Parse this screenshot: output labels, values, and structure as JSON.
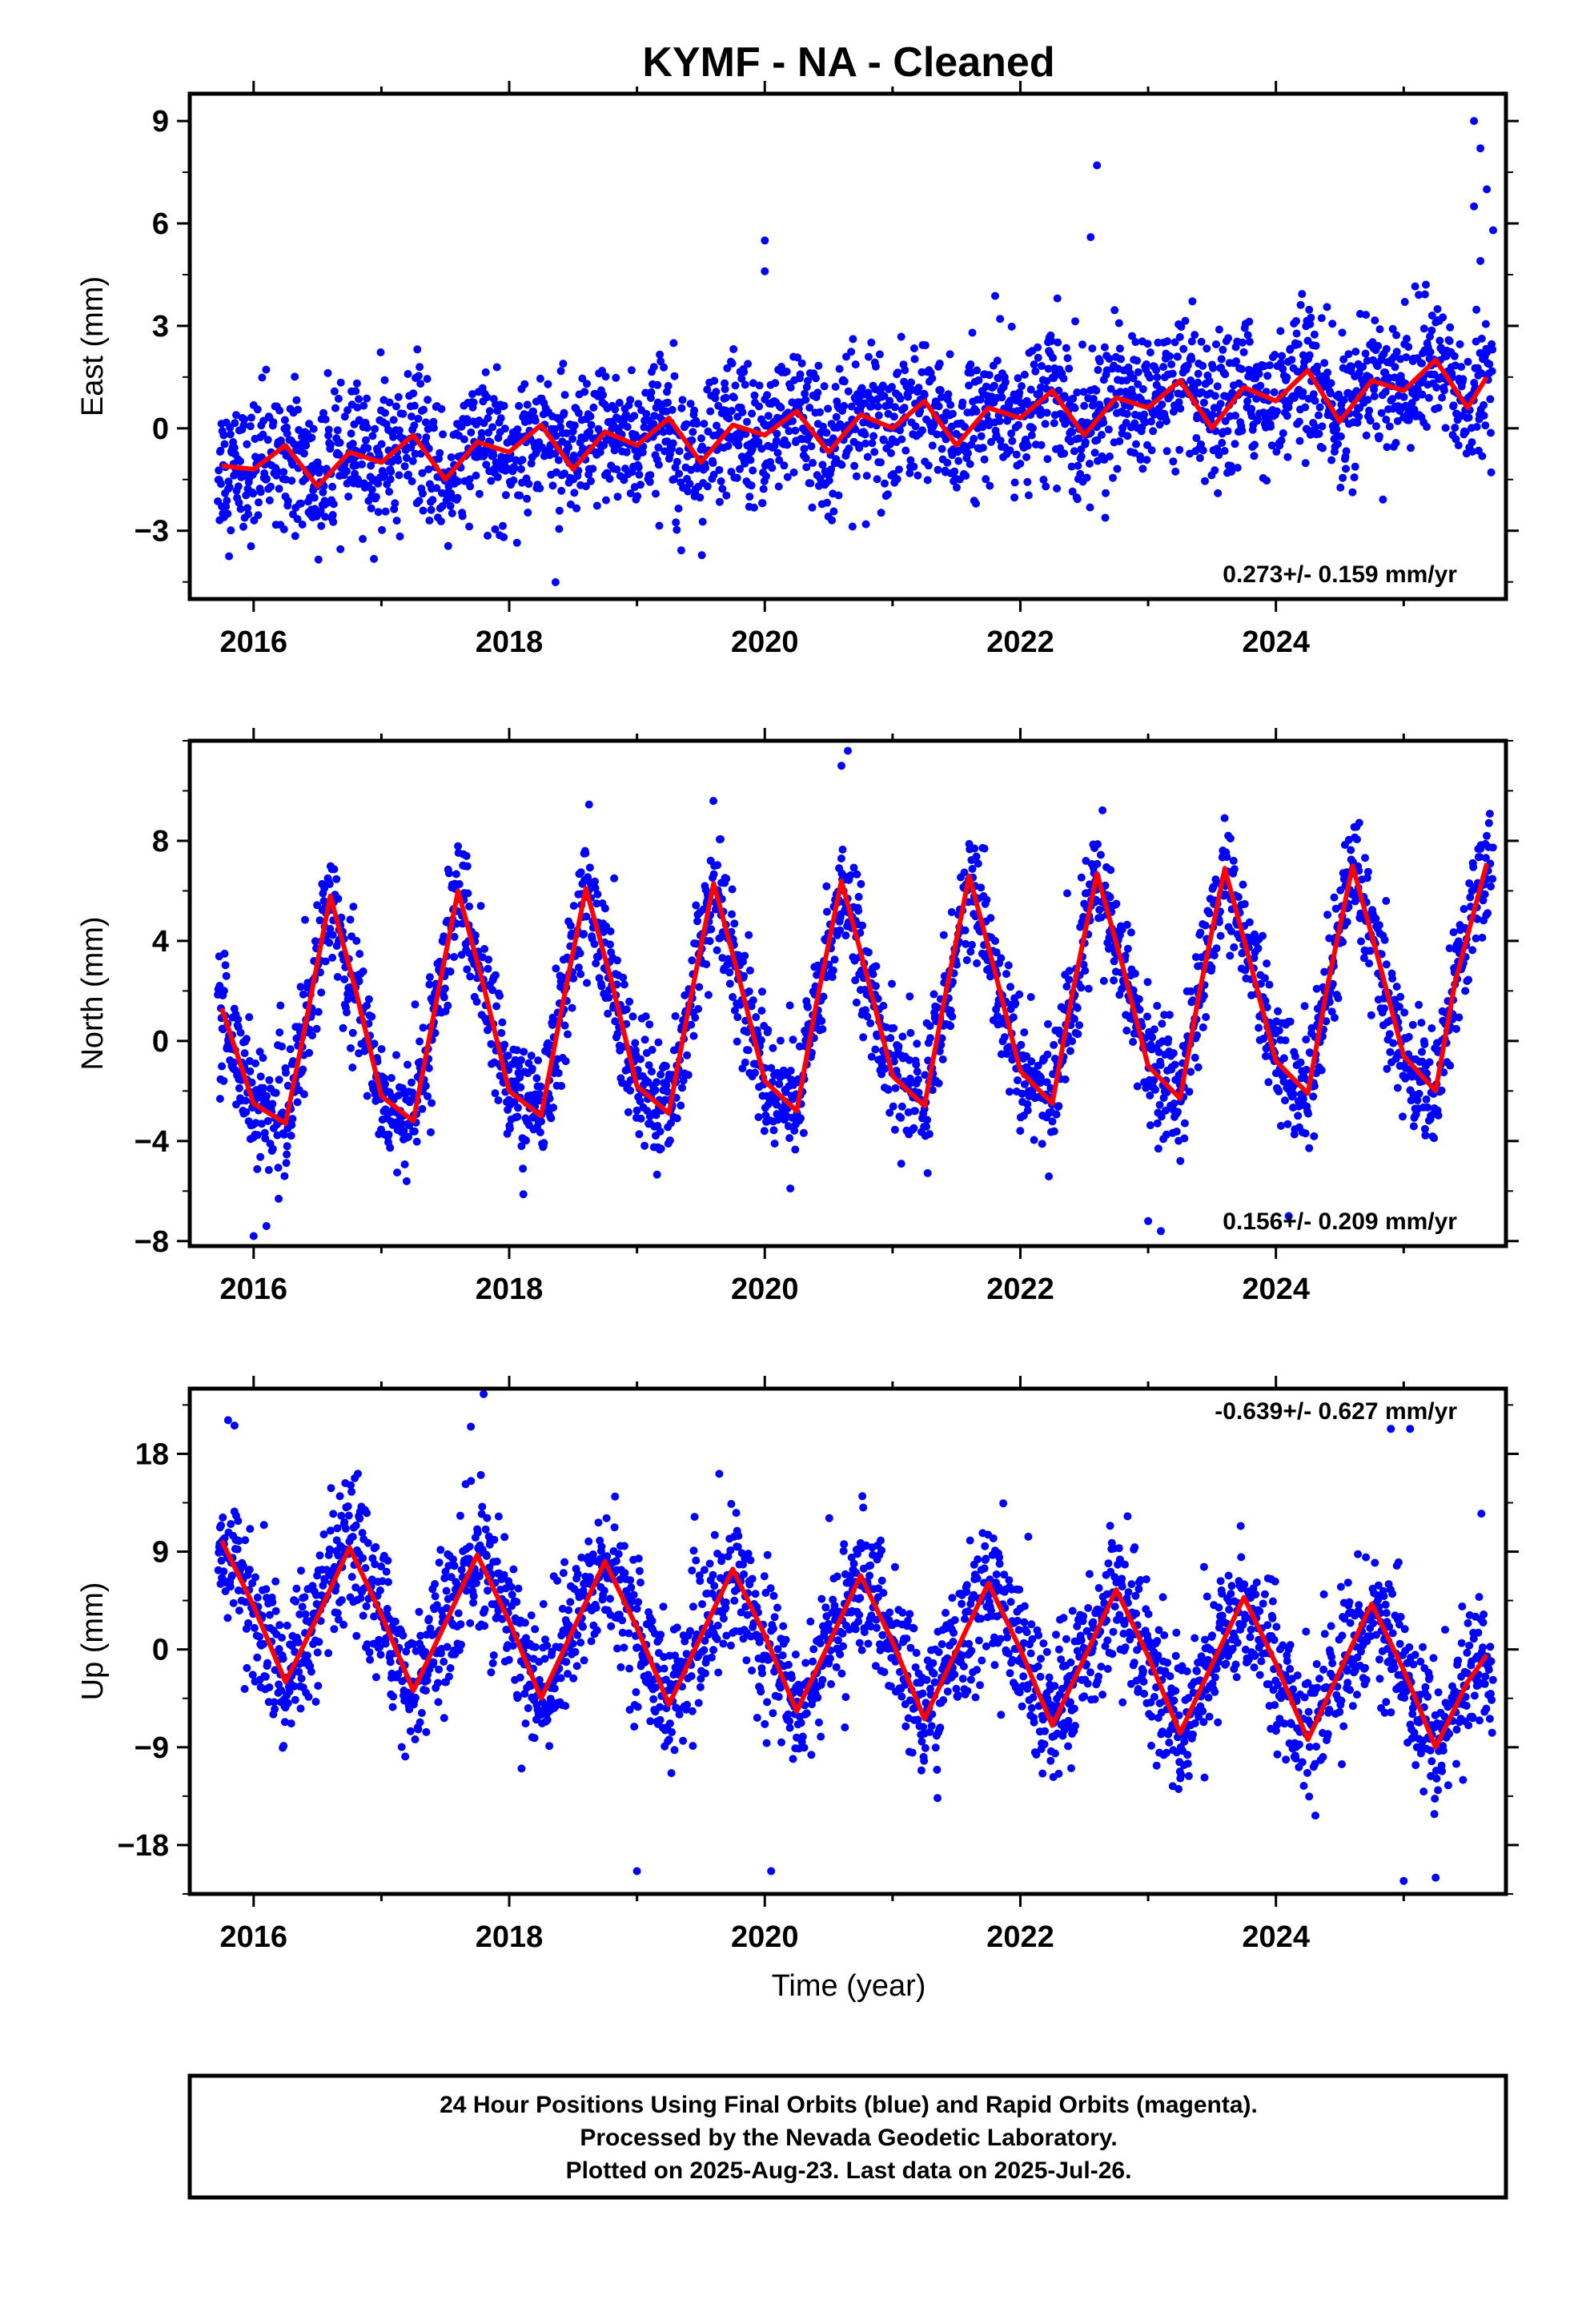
{
  "chart_data": {
    "type": "scatter",
    "title": "KYMF  - NA - Cleaned",
    "xlabel": "Time (year)",
    "x_ticks": [
      "2016",
      "2018",
      "2020",
      "2022",
      "2024"
    ],
    "xlim": [
      2015.5,
      2025.8
    ],
    "marker_color": "#0000ff",
    "fit_color": "#ff0000",
    "panels": [
      {
        "name": "east",
        "ylabel": "East (mm)",
        "ylim": [
          -5,
          9.8
        ],
        "yticks": [
          "9",
          "6",
          "3",
          "0",
          "-3"
        ],
        "ytick_values": [
          9,
          6,
          3,
          0,
          -3
        ],
        "rate_text": "0.273+/- 0.159 mm/yr",
        "model": {
          "offset": -1.1,
          "trend": 0.273,
          "annual_amp": 0.5,
          "annual_phase": 0.1,
          "semiannual_amp": 0.35,
          "semiannual_phase": 0.6,
          "t0": 2015.75,
          "noise": 1.0
        },
        "fit_curve": [
          [
            2015.75,
            -1.1
          ],
          [
            2016.0,
            -1.2
          ],
          [
            2016.25,
            -0.5
          ],
          [
            2016.5,
            -1.7
          ],
          [
            2016.75,
            -0.7
          ],
          [
            2017.0,
            -1.0
          ],
          [
            2017.25,
            -0.2
          ],
          [
            2017.5,
            -1.5
          ],
          [
            2017.75,
            -0.4
          ],
          [
            2018.0,
            -0.7
          ],
          [
            2018.25,
            0.1
          ],
          [
            2018.5,
            -1.2
          ],
          [
            2018.75,
            -0.1
          ],
          [
            2019.0,
            -0.5
          ],
          [
            2019.25,
            0.3
          ],
          [
            2019.5,
            -1.0
          ],
          [
            2019.75,
            0.1
          ],
          [
            2020.0,
            -0.2
          ],
          [
            2020.25,
            0.5
          ],
          [
            2020.5,
            -0.7
          ],
          [
            2020.75,
            0.4
          ],
          [
            2021.0,
            0.0
          ],
          [
            2021.25,
            0.8
          ],
          [
            2021.5,
            -0.5
          ],
          [
            2021.75,
            0.6
          ],
          [
            2022.0,
            0.3
          ],
          [
            2022.25,
            1.1
          ],
          [
            2022.5,
            -0.2
          ],
          [
            2022.75,
            0.9
          ],
          [
            2023.0,
            0.6
          ],
          [
            2023.25,
            1.4
          ],
          [
            2023.5,
            0.0
          ],
          [
            2023.75,
            1.2
          ],
          [
            2024.0,
            0.8
          ],
          [
            2024.25,
            1.7
          ],
          [
            2024.5,
            0.2
          ],
          [
            2024.75,
            1.4
          ],
          [
            2025.0,
            1.1
          ],
          [
            2025.25,
            2.0
          ],
          [
            2025.5,
            0.6
          ],
          [
            2025.65,
            1.5
          ]
        ],
        "outliers": [
          [
            2022.6,
            7.7
          ],
          [
            2022.55,
            5.6
          ],
          [
            2020.0,
            5.5
          ],
          [
            2020.0,
            4.6
          ],
          [
            2025.55,
            9.0
          ],
          [
            2025.6,
            8.2
          ],
          [
            2025.65,
            7.0
          ],
          [
            2025.7,
            5.8
          ],
          [
            2025.55,
            6.5
          ],
          [
            2025.6,
            4.9
          ]
        ]
      },
      {
        "name": "north",
        "ylabel": "North (mm)",
        "ylim": [
          -8.2,
          12
        ],
        "yticks": [
          "8",
          "4",
          "0",
          "-4",
          "-8"
        ],
        "ytick_values": [
          8,
          4,
          0,
          -4,
          -8
        ],
        "rate_text": "0.156+/- 0.209 mm/yr",
        "model": {
          "offset": 1.2,
          "trend": 0.156,
          "annual_amp": 4.3,
          "annual_phase": 0.35,
          "semiannual_amp": 1.3,
          "semiannual_phase": 0.2,
          "t0": 2015.75,
          "noise": 1.2
        },
        "fit_curve": [
          [
            2015.75,
            1.3
          ],
          [
            2016.0,
            -2.5
          ],
          [
            2016.25,
            -3.3
          ],
          [
            2016.4,
            0.5
          ],
          [
            2016.6,
            5.8
          ],
          [
            2016.8,
            2.0
          ],
          [
            2017.0,
            -2.2
          ],
          [
            2017.25,
            -3.2
          ],
          [
            2017.4,
            0.8
          ],
          [
            2017.6,
            6.0
          ],
          [
            2017.8,
            2.2
          ],
          [
            2018.0,
            -2.0
          ],
          [
            2018.25,
            -3.0
          ],
          [
            2018.4,
            1.0
          ],
          [
            2018.6,
            6.1
          ],
          [
            2018.8,
            2.4
          ],
          [
            2019.0,
            -1.8
          ],
          [
            2019.25,
            -2.9
          ],
          [
            2019.4,
            1.2
          ],
          [
            2019.6,
            6.3
          ],
          [
            2019.8,
            2.5
          ],
          [
            2020.0,
            -1.6
          ],
          [
            2020.25,
            -2.8
          ],
          [
            2020.4,
            1.4
          ],
          [
            2020.6,
            6.4
          ],
          [
            2020.8,
            2.6
          ],
          [
            2021.0,
            -1.4
          ],
          [
            2021.25,
            -2.6
          ],
          [
            2021.4,
            1.5
          ],
          [
            2021.6,
            6.6
          ],
          [
            2021.8,
            2.8
          ],
          [
            2022.0,
            -1.2
          ],
          [
            2022.25,
            -2.5
          ],
          [
            2022.4,
            1.7
          ],
          [
            2022.6,
            6.7
          ],
          [
            2022.8,
            3.0
          ],
          [
            2023.0,
            -1.0
          ],
          [
            2023.25,
            -2.3
          ],
          [
            2023.4,
            1.9
          ],
          [
            2023.6,
            6.9
          ],
          [
            2023.8,
            3.1
          ],
          [
            2024.0,
            -0.8
          ],
          [
            2024.25,
            -2.1
          ],
          [
            2024.4,
            2.1
          ],
          [
            2024.6,
            7.0
          ],
          [
            2024.8,
            3.3
          ],
          [
            2025.0,
            -0.6
          ],
          [
            2025.25,
            -2.0
          ],
          [
            2025.4,
            2.3
          ],
          [
            2025.65,
            7.1
          ]
        ],
        "outliers": [
          [
            2020.65,
            11.6
          ],
          [
            2020.6,
            11.0
          ],
          [
            2016.0,
            -7.8
          ],
          [
            2016.1,
            -7.4
          ],
          [
            2023.1,
            -7.6
          ],
          [
            2023.0,
            -7.2
          ],
          [
            2024.1,
            -7.0
          ]
        ]
      },
      {
        "name": "up",
        "ylabel": "Up (mm)",
        "ylim": [
          -22.5,
          24
        ],
        "yticks": [
          "18",
          "9",
          "0",
          "-9",
          "-18"
        ],
        "ytick_values": [
          18,
          9,
          0,
          -9,
          -18
        ],
        "rate_text": "-0.639+/- 0.627 mm/yr",
        "model": {
          "offset": 3.0,
          "trend": -0.639,
          "annual_amp": 6.5,
          "annual_phase": 0.5,
          "semiannual_amp": 0.0,
          "semiannual_phase": 0.0,
          "t0": 2015.75,
          "noise": 3.2
        },
        "fit_curve": [
          [
            2015.75,
            10.0
          ],
          [
            2016.0,
            4.0
          ],
          [
            2016.25,
            -3.0
          ],
          [
            2016.5,
            3.0
          ],
          [
            2016.75,
            9.4
          ],
          [
            2017.0,
            3.2
          ],
          [
            2017.25,
            -3.8
          ],
          [
            2017.5,
            2.4
          ],
          [
            2017.75,
            8.7
          ],
          [
            2018.0,
            2.6
          ],
          [
            2018.25,
            -4.5
          ],
          [
            2018.5,
            1.8
          ],
          [
            2018.75,
            8.1
          ],
          [
            2019.0,
            2.0
          ],
          [
            2019.25,
            -5.1
          ],
          [
            2019.5,
            1.2
          ],
          [
            2019.75,
            7.4
          ],
          [
            2020.0,
            1.3
          ],
          [
            2020.25,
            -5.7
          ],
          [
            2020.5,
            0.5
          ],
          [
            2020.75,
            6.8
          ],
          [
            2021.0,
            0.7
          ],
          [
            2021.25,
            -6.4
          ],
          [
            2021.5,
            -0.1
          ],
          [
            2021.75,
            6.1
          ],
          [
            2022.0,
            0.0
          ],
          [
            2022.25,
            -7.0
          ],
          [
            2022.5,
            -0.8
          ],
          [
            2022.75,
            5.5
          ],
          [
            2023.0,
            -0.6
          ],
          [
            2023.25,
            -7.7
          ],
          [
            2023.5,
            -1.4
          ],
          [
            2023.75,
            4.8
          ],
          [
            2024.0,
            -1.3
          ],
          [
            2024.25,
            -8.3
          ],
          [
            2024.5,
            -2.0
          ],
          [
            2024.75,
            4.2
          ],
          [
            2025.0,
            -1.9
          ],
          [
            2025.25,
            -9.0
          ],
          [
            2025.5,
            -3.0
          ],
          [
            2025.65,
            -0.5
          ]
        ],
        "outliers": [
          [
            2017.8,
            23.5
          ],
          [
            2017.7,
            20.5
          ],
          [
            2015.85,
            20.6
          ],
          [
            2015.8,
            21.1
          ],
          [
            2024.9,
            20.3
          ],
          [
            2025.05,
            20.3
          ],
          [
            2019.0,
            -20.4
          ],
          [
            2020.05,
            -20.4
          ],
          [
            2025.0,
            -21.3
          ],
          [
            2025.25,
            -21.0
          ]
        ]
      }
    ]
  },
  "footer": {
    "line1": "24 Hour Positions Using Final Orbits (blue) and Rapid Orbits (magenta).",
    "line2": "Processed by the Nevada Geodetic Laboratory.",
    "line3": "Plotted on 2025-Aug-23. Last data on 2025-Jul-26."
  }
}
